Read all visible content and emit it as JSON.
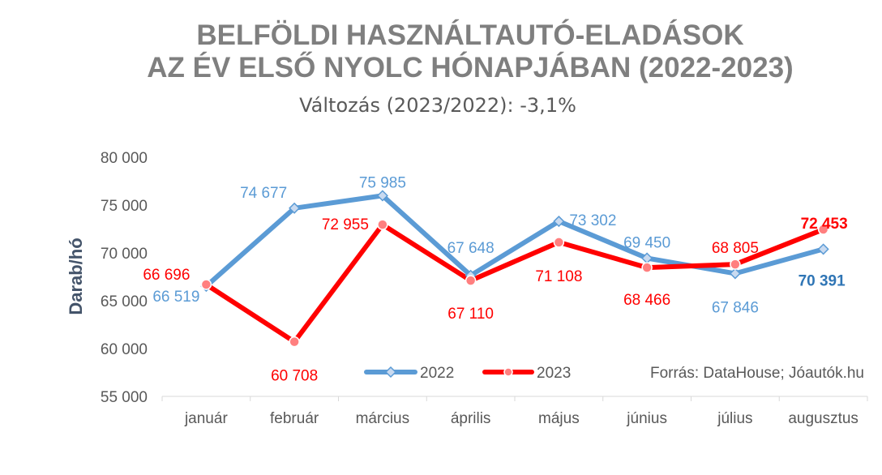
{
  "chart_data": {
    "type": "line",
    "title_line1": "BELFÖLDI HASZNÁLTAUTÓ-ELADÁSOK",
    "title_line2": "AZ ÉV ELSŐ NYOLC HÓNAPJÁBAN (2022-2023)",
    "subtitle": "Változás (2023/2022): -3,1%",
    "ylabel": "Darab/hó",
    "ylim": [
      55000,
      80000
    ],
    "yticks": [
      55000,
      60000,
      65000,
      70000,
      75000,
      80000
    ],
    "ytick_labels": [
      "55 000",
      "60 000",
      "65 000",
      "70 000",
      "75 000",
      "80 000"
    ],
    "categories": [
      "január",
      "február",
      "március",
      "április",
      "május",
      "június",
      "július",
      "augusztus"
    ],
    "series": [
      {
        "name": "2022",
        "color": "#5b9bd5",
        "marker": "diamond",
        "values": [
          66519,
          74677,
          75985,
          67648,
          73302,
          69450,
          67846,
          70391
        ],
        "labels": [
          "66 519",
          "74 677",
          "75 985",
          "67 648",
          "73 302",
          "69 450",
          "67 846",
          "70 391"
        ]
      },
      {
        "name": "2023",
        "color": "#ff0000",
        "marker": "circle",
        "values": [
          66696,
          60708,
          72955,
          67110,
          71108,
          68466,
          68805,
          72453
        ],
        "labels": [
          "66 696",
          "60 708",
          "72 955",
          "67 110",
          "71 108",
          "68 466",
          "68 805",
          "72 453"
        ]
      }
    ],
    "legend_position": "bottom",
    "grid": false,
    "source": "Forrás: DataHouse; Jóautók.hu"
  }
}
